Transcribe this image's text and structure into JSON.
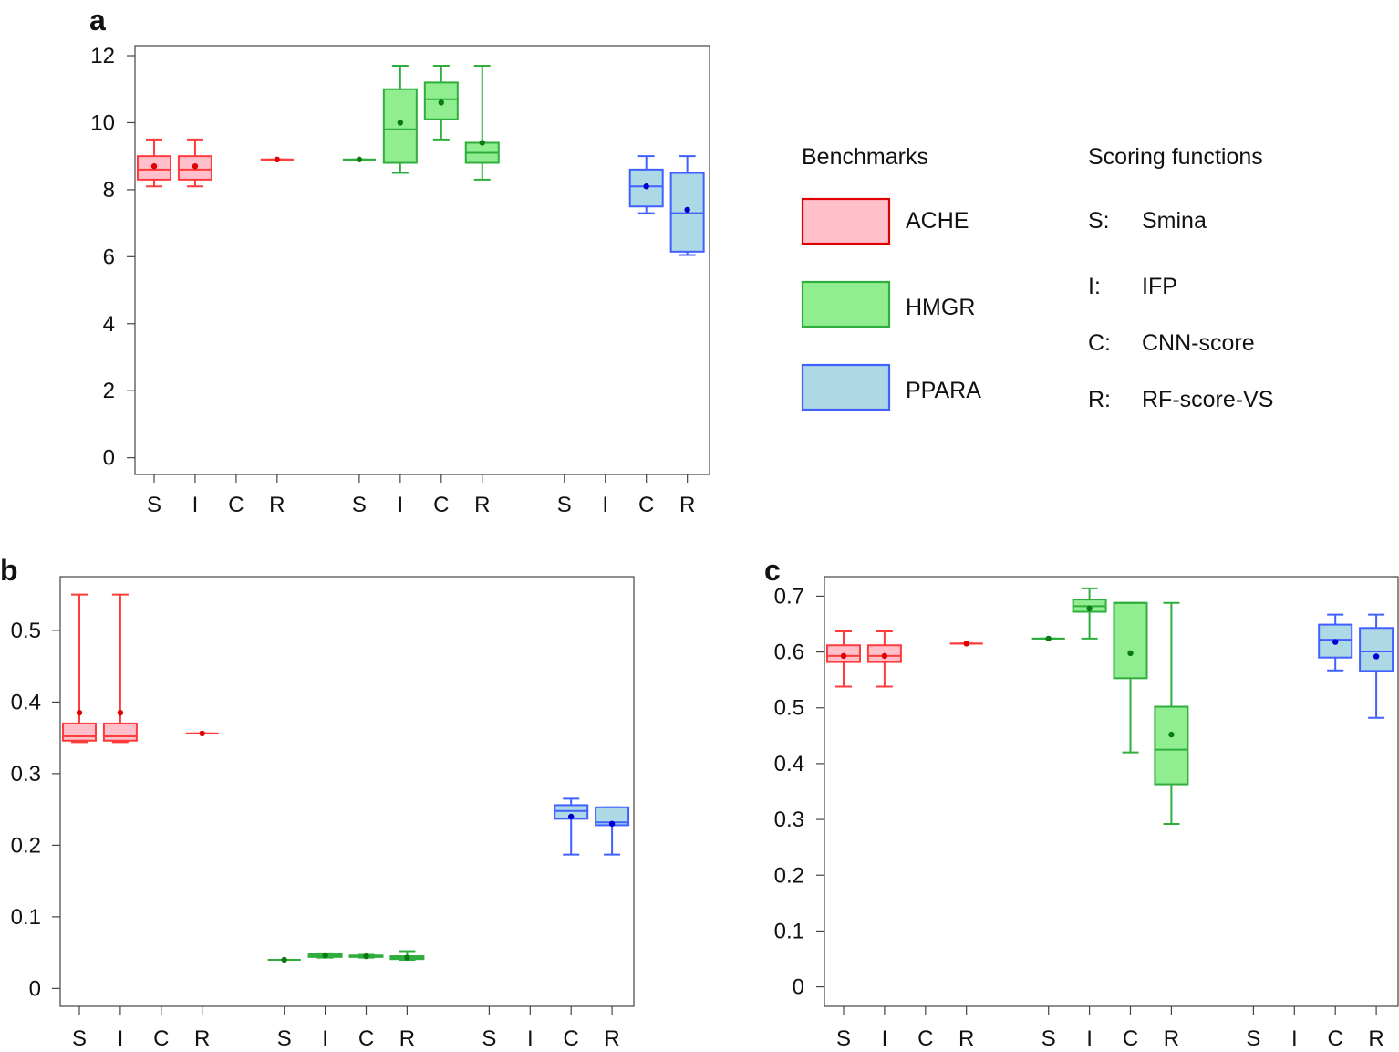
{
  "colors": {
    "ACHE": {
      "fill": "#ffc0cb",
      "stroke": "#ff3b3b",
      "mean": "#e00000"
    },
    "HMGR": {
      "fill": "#90ee90",
      "stroke": "#2fae3c",
      "mean": "#0b7a15"
    },
    "PPARA": {
      "fill": "#add8e6",
      "stroke": "#4060ff",
      "mean": "#0000cc"
    }
  },
  "legend": {
    "benchmarks_title": "Benchmarks",
    "benchmarks": [
      {
        "key": "ACHE",
        "label": "ACHE"
      },
      {
        "key": "HMGR",
        "label": "HMGR"
      },
      {
        "key": "PPARA",
        "label": "PPARA"
      }
    ],
    "scoring_title": "Scoring functions",
    "scoring": [
      {
        "abbr": "S:",
        "name": "Smina"
      },
      {
        "abbr": "I:",
        "name": "IFP"
      },
      {
        "abbr": "C:",
        "name": "CNN-score"
      },
      {
        "abbr": "R:",
        "name": "RF-score-VS"
      }
    ]
  },
  "chart_data": [
    {
      "panel": "a",
      "type": "box",
      "categories": [
        "S",
        "I",
        "C",
        "R",
        "S",
        "I",
        "C",
        "R",
        "S",
        "I",
        "C",
        "R"
      ],
      "ylim": [
        -0.5,
        12.3
      ],
      "yticks": [
        0,
        2,
        4,
        6,
        8,
        10,
        12
      ],
      "ytick_labels": [
        "0",
        "2",
        "4",
        "6",
        "8",
        "10",
        "12"
      ],
      "boxes": [
        {
          "group": "ACHE",
          "cat": "S",
          "min": 8.1,
          "q1": 8.3,
          "median": 8.6,
          "q3": 9.0,
          "max": 9.5,
          "mean": 8.7
        },
        {
          "group": "ACHE",
          "cat": "I",
          "min": 8.1,
          "q1": 8.3,
          "median": 8.6,
          "q3": 9.0,
          "max": 9.5,
          "mean": 8.7
        },
        {
          "group": "ACHE",
          "cat": "R",
          "min": 8.9,
          "q1": 8.9,
          "median": 8.9,
          "q3": 8.9,
          "max": 8.9,
          "mean": 8.9
        },
        {
          "group": "HMGR",
          "cat": "S",
          "min": 8.9,
          "q1": 8.9,
          "median": 8.9,
          "q3": 8.9,
          "max": 8.9,
          "mean": 8.9
        },
        {
          "group": "HMGR",
          "cat": "I",
          "min": 8.5,
          "q1": 8.8,
          "median": 9.8,
          "q3": 11.0,
          "max": 11.7,
          "mean": 10.0
        },
        {
          "group": "HMGR",
          "cat": "C",
          "min": 9.5,
          "q1": 10.1,
          "median": 10.7,
          "q3": 11.2,
          "max": 11.7,
          "mean": 10.6
        },
        {
          "group": "HMGR",
          "cat": "R",
          "min": 8.3,
          "q1": 8.8,
          "median": 9.1,
          "q3": 9.4,
          "max": 11.7,
          "mean": 9.4
        },
        {
          "group": "PPARA",
          "cat": "C",
          "min": 7.3,
          "q1": 7.5,
          "median": 8.1,
          "q3": 8.6,
          "max": 9.0,
          "mean": 8.1
        },
        {
          "group": "PPARA",
          "cat": "R",
          "min": 6.05,
          "q1": 6.15,
          "median": 7.3,
          "q3": 8.5,
          "max": 9.0,
          "mean": 7.4
        }
      ]
    },
    {
      "panel": "b",
      "type": "box",
      "categories": [
        "S",
        "I",
        "C",
        "R",
        "S",
        "I",
        "C",
        "R",
        "S",
        "I",
        "C",
        "R"
      ],
      "ylim": [
        -0.025,
        0.575
      ],
      "yticks": [
        0,
        0.1,
        0.2,
        0.3,
        0.4,
        0.5
      ],
      "ytick_labels": [
        "0",
        "0.1",
        "0.2",
        "0.3",
        "0.4",
        "0.5"
      ],
      "boxes": [
        {
          "group": "ACHE",
          "cat": "S",
          "min": 0.344,
          "q1": 0.346,
          "median": 0.352,
          "q3": 0.37,
          "max": 0.55,
          "mean": 0.385
        },
        {
          "group": "ACHE",
          "cat": "I",
          "min": 0.344,
          "q1": 0.346,
          "median": 0.352,
          "q3": 0.37,
          "max": 0.55,
          "mean": 0.385
        },
        {
          "group": "ACHE",
          "cat": "R",
          "min": 0.356,
          "q1": 0.356,
          "median": 0.356,
          "q3": 0.356,
          "max": 0.356,
          "mean": 0.356
        },
        {
          "group": "HMGR",
          "cat": "S",
          "min": 0.04,
          "q1": 0.04,
          "median": 0.04,
          "q3": 0.04,
          "max": 0.04,
          "mean": 0.04
        },
        {
          "group": "HMGR",
          "cat": "I",
          "min": 0.043,
          "q1": 0.044,
          "median": 0.046,
          "q3": 0.048,
          "max": 0.049,
          "mean": 0.046
        },
        {
          "group": "HMGR",
          "cat": "C",
          "min": 0.043,
          "q1": 0.044,
          "median": 0.045,
          "q3": 0.046,
          "max": 0.047,
          "mean": 0.045
        },
        {
          "group": "HMGR",
          "cat": "R",
          "min": 0.04,
          "q1": 0.041,
          "median": 0.043,
          "q3": 0.045,
          "max": 0.052,
          "mean": 0.043
        },
        {
          "group": "PPARA",
          "cat": "C",
          "min": 0.187,
          "q1": 0.237,
          "median": 0.248,
          "q3": 0.256,
          "max": 0.265,
          "mean": 0.24
        },
        {
          "group": "PPARA",
          "cat": "R",
          "min": 0.187,
          "q1": 0.228,
          "median": 0.232,
          "q3": 0.253,
          "max": 0.253,
          "mean": 0.23
        }
      ]
    },
    {
      "panel": "c",
      "type": "box",
      "categories": [
        "S",
        "I",
        "C",
        "R",
        "S",
        "I",
        "C",
        "R",
        "S",
        "I",
        "C",
        "R"
      ],
      "ylim": [
        -0.035,
        0.735
      ],
      "yticks": [
        0,
        0.1,
        0.2,
        0.3,
        0.4,
        0.5,
        0.6,
        0.7
      ],
      "ytick_labels": [
        "0",
        "0.1",
        "0.2",
        "0.3",
        "0.4",
        "0.5",
        "0.6",
        "0.7"
      ],
      "boxes": [
        {
          "group": "ACHE",
          "cat": "S",
          "min": 0.538,
          "q1": 0.582,
          "median": 0.593,
          "q3": 0.612,
          "max": 0.637,
          "mean": 0.593
        },
        {
          "group": "ACHE",
          "cat": "I",
          "min": 0.538,
          "q1": 0.582,
          "median": 0.593,
          "q3": 0.612,
          "max": 0.637,
          "mean": 0.593
        },
        {
          "group": "ACHE",
          "cat": "R",
          "min": 0.615,
          "q1": 0.615,
          "median": 0.615,
          "q3": 0.615,
          "max": 0.615,
          "mean": 0.615
        },
        {
          "group": "HMGR",
          "cat": "S",
          "min": 0.624,
          "q1": 0.624,
          "median": 0.624,
          "q3": 0.624,
          "max": 0.624,
          "mean": 0.624
        },
        {
          "group": "HMGR",
          "cat": "I",
          "min": 0.624,
          "q1": 0.672,
          "median": 0.682,
          "q3": 0.694,
          "max": 0.714,
          "mean": 0.678
        },
        {
          "group": "HMGR",
          "cat": "C",
          "min": 0.42,
          "q1": 0.553,
          "median": 0.688,
          "q3": 0.688,
          "max": 0.688,
          "mean": 0.598
        },
        {
          "group": "HMGR",
          "cat": "R",
          "min": 0.292,
          "q1": 0.363,
          "median": 0.425,
          "q3": 0.502,
          "max": 0.688,
          "mean": 0.452
        },
        {
          "group": "PPARA",
          "cat": "C",
          "min": 0.567,
          "q1": 0.59,
          "median": 0.622,
          "q3": 0.649,
          "max": 0.667,
          "mean": 0.618
        },
        {
          "group": "PPARA",
          "cat": "R",
          "min": 0.482,
          "q1": 0.566,
          "median": 0.601,
          "q3": 0.643,
          "max": 0.667,
          "mean": 0.592
        }
      ]
    }
  ]
}
